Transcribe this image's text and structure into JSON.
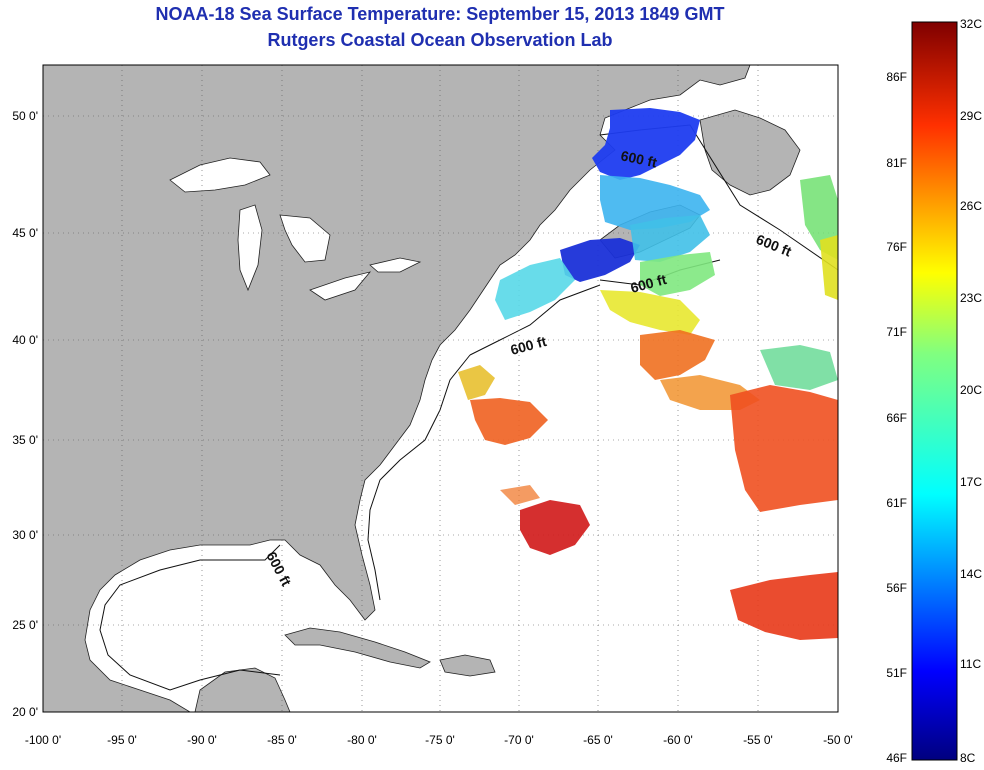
{
  "title": "NOAA-18 Sea Surface Temperature:  September 15, 2013 1849 GMT",
  "subtitle": "Rutgers Coastal Ocean Observation Lab",
  "lon_labels": [
    "-100 0'",
    "-95 0'",
    "-90 0'",
    "-85 0'",
    "-80 0'",
    "-75 0'",
    "-70 0'",
    "-65 0'",
    "-60 0'",
    "-55 0'",
    "-50 0'"
  ],
  "lat_labels": [
    "50 0'",
    "45 0'",
    "40 0'",
    "35 0'",
    "30 0'",
    "25 0'",
    "20 0'"
  ],
  "contour_label": "600 ft",
  "colorbar": {
    "celsius": [
      "32C",
      "29C",
      "26C",
      "23C",
      "20C",
      "17C",
      "14C",
      "11C",
      "8C"
    ],
    "fahrenheit": [
      "86F",
      "81F",
      "76F",
      "71F",
      "66F",
      "61F",
      "56F",
      "51F",
      "46F"
    ]
  },
  "colors": {
    "land": "#b4b4b4",
    "ocean": "#ffffff",
    "title": "#1f2fb0"
  }
}
